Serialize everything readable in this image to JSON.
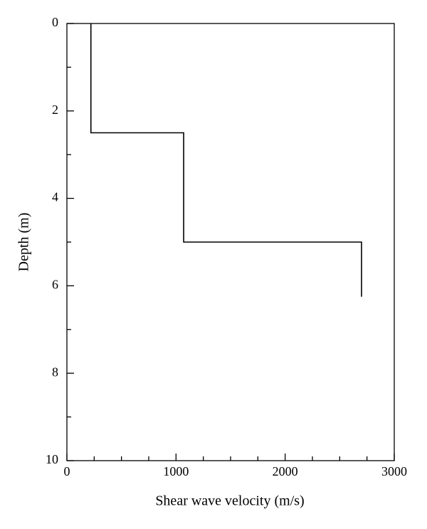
{
  "chart_data": {
    "type": "line",
    "x_label": "Shear wave velocity (m/s)",
    "y_label": "Depth (m)",
    "series": [
      {
        "color": "#000000",
        "x": [
          220,
          220,
          1070,
          1070,
          2700,
          2700
        ],
        "values": [
          0,
          2.5,
          2.5,
          5,
          5,
          6.25
        ]
      }
    ],
    "xlim": [
      0,
      3000
    ],
    "xticks": [
      0,
      1000,
      2000,
      3000
    ],
    "x_minor_ticks": [
      250,
      500,
      750,
      1250,
      1500,
      1750,
      2250,
      2500,
      2750
    ],
    "ylim": [
      0,
      10
    ],
    "yticks": [
      0,
      2,
      4,
      6,
      8,
      10
    ],
    "y_minor_ticks": [
      1,
      3,
      5,
      7,
      9
    ],
    "y_inverted": true,
    "grid": false
  }
}
